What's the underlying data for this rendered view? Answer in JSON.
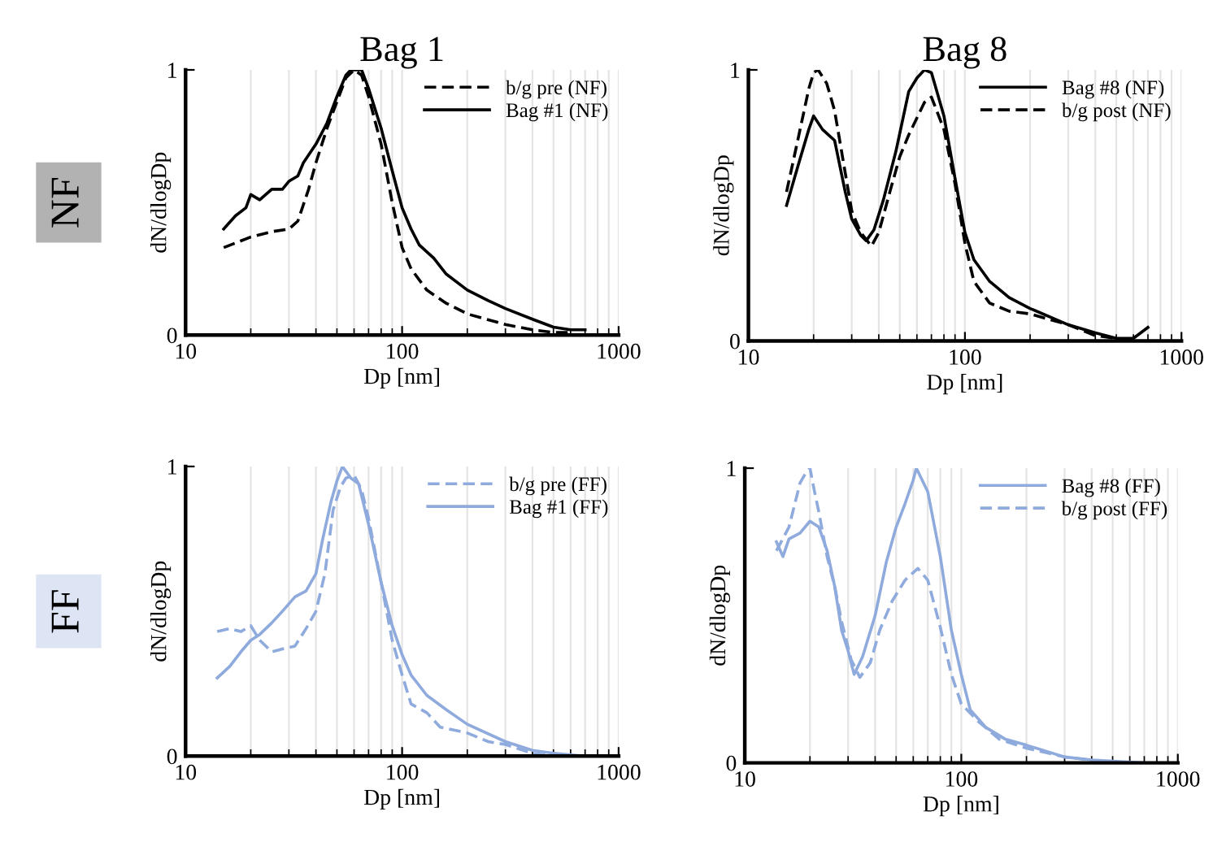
{
  "chart_data": [
    {
      "type": "line",
      "title": "Bag 1",
      "xlabel": "Dp [nm]",
      "ylabel": "dN/dlogDp",
      "annotations": [
        "NF"
      ],
      "log": "x",
      "xlim": [
        10,
        1000
      ],
      "xticks": [
        10,
        100,
        1000
      ],
      "ylim": [
        0,
        1
      ],
      "yticks": [
        0,
        1
      ],
      "grid": "x",
      "legend": "top right",
      "series": [
        {
          "name": "b/g pre (NF)",
          "color": "#000000",
          "line_style": "dashed",
          "x": [
            15,
            20,
            25,
            30,
            33,
            37,
            40,
            45,
            50,
            55,
            60,
            65,
            70,
            80,
            90,
            100,
            110,
            130,
            160,
            200,
            300,
            400,
            500,
            600
          ],
          "values": [
            0.33,
            0.37,
            0.39,
            0.4,
            0.43,
            0.55,
            0.65,
            0.78,
            0.88,
            0.97,
            1.0,
            0.98,
            0.9,
            0.72,
            0.5,
            0.33,
            0.25,
            0.17,
            0.12,
            0.08,
            0.04,
            0.02,
            0.01,
            0.01
          ]
        },
        {
          "name": "Bag #1 (NF)",
          "color": "#000000",
          "line_style": "solid",
          "x": [
            15,
            17,
            19,
            20,
            22,
            25,
            28,
            30,
            33,
            35,
            40,
            45,
            50,
            55,
            58,
            65,
            70,
            80,
            90,
            100,
            110,
            120,
            140,
            160,
            200,
            250,
            300,
            400,
            500,
            600,
            700
          ],
          "values": [
            0.4,
            0.45,
            0.48,
            0.53,
            0.51,
            0.55,
            0.55,
            0.58,
            0.6,
            0.65,
            0.72,
            0.8,
            0.9,
            0.98,
            1.0,
            1.0,
            0.93,
            0.78,
            0.62,
            0.48,
            0.4,
            0.34,
            0.29,
            0.23,
            0.17,
            0.13,
            0.1,
            0.06,
            0.03,
            0.02,
            0.02
          ]
        }
      ]
    },
    {
      "type": "line",
      "title": "Bag 8",
      "xlabel": "Dp [nm]",
      "ylabel": "dN/dlogDp",
      "log": "x",
      "xlim": [
        10,
        1000
      ],
      "xticks": [
        10,
        100,
        1000
      ],
      "ylim": [
        0,
        1
      ],
      "yticks": [
        0,
        1
      ],
      "grid": "x",
      "legend": "top right",
      "series": [
        {
          "name": "Bag #8 (NF)",
          "color": "#000000",
          "line_style": "solid",
          "x": [
            15,
            17,
            19,
            20,
            22,
            25,
            28,
            30,
            33,
            35,
            38,
            42,
            48,
            55,
            60,
            65,
            70,
            80,
            90,
            100,
            110,
            130,
            160,
            200,
            300,
            400,
            500,
            600,
            700
          ],
          "values": [
            0.5,
            0.65,
            0.78,
            0.83,
            0.78,
            0.74,
            0.55,
            0.45,
            0.39,
            0.37,
            0.41,
            0.52,
            0.7,
            0.92,
            0.97,
            1.0,
            0.99,
            0.83,
            0.6,
            0.4,
            0.3,
            0.22,
            0.16,
            0.12,
            0.06,
            0.03,
            0.01,
            0.01,
            0.05
          ]
        },
        {
          "name": "b/g post (NF)",
          "color": "#000000",
          "line_style": "dashed",
          "x": [
            15,
            17,
            19,
            20,
            21,
            23,
            25,
            28,
            30,
            33,
            37,
            40,
            45,
            50,
            55,
            65,
            70,
            80,
            90,
            100,
            110,
            130,
            160,
            200,
            300,
            400,
            500,
            600
          ],
          "values": [
            0.55,
            0.75,
            0.93,
            0.99,
            1.0,
            0.95,
            0.85,
            0.62,
            0.48,
            0.4,
            0.35,
            0.4,
            0.55,
            0.68,
            0.76,
            0.88,
            0.9,
            0.78,
            0.58,
            0.36,
            0.22,
            0.14,
            0.11,
            0.1,
            0.06,
            0.02,
            0.01,
            0.0
          ]
        }
      ]
    },
    {
      "type": "line",
      "xlabel": "Dp [nm]",
      "ylabel": "dN/dlogDp",
      "annotations": [
        "FF"
      ],
      "log": "x",
      "xlim": [
        10,
        1000
      ],
      "xticks": [
        10,
        100,
        1000
      ],
      "ylim": [
        0,
        1
      ],
      "yticks": [
        0,
        1
      ],
      "grid": "x",
      "legend": "top right",
      "series": [
        {
          "name": "b/g pre (FF)",
          "color": "#8faadc",
          "line_style": "dashed",
          "x": [
            14,
            16,
            18,
            20,
            22,
            25,
            28,
            32,
            36,
            40,
            44,
            48,
            52,
            55,
            60,
            65,
            70,
            80,
            90,
            100,
            110,
            130,
            150,
            200,
            250,
            300,
            400,
            500
          ],
          "values": [
            0.43,
            0.44,
            0.43,
            0.45,
            0.4,
            0.36,
            0.37,
            0.38,
            0.44,
            0.5,
            0.63,
            0.85,
            0.93,
            0.96,
            0.97,
            0.92,
            0.82,
            0.6,
            0.4,
            0.28,
            0.18,
            0.15,
            0.1,
            0.08,
            0.05,
            0.04,
            0.01,
            0.0
          ]
        },
        {
          "name": "Bag #1 (FF)",
          "color": "#8faadc",
          "line_style": "solid",
          "x": [
            14,
            16,
            18,
            20,
            22,
            25,
            28,
            32,
            36,
            40,
            43,
            47,
            50,
            53,
            58,
            63,
            70,
            80,
            90,
            100,
            110,
            130,
            160,
            200,
            300,
            400,
            500,
            700
          ],
          "values": [
            0.27,
            0.31,
            0.36,
            0.4,
            0.42,
            0.46,
            0.5,
            0.55,
            0.57,
            0.63,
            0.75,
            0.88,
            0.95,
            1.0,
            0.96,
            0.94,
            0.8,
            0.6,
            0.45,
            0.35,
            0.28,
            0.21,
            0.16,
            0.11,
            0.05,
            0.02,
            0.01,
            0.0
          ]
        }
      ]
    },
    {
      "type": "line",
      "xlabel": "Dp [nm]",
      "ylabel": "dN/dlogDp",
      "log": "x",
      "xlim": [
        10,
        1000
      ],
      "xticks": [
        10,
        100,
        1000
      ],
      "ylim": [
        0,
        1
      ],
      "yticks": [
        0,
        1
      ],
      "grid": "x",
      "legend": "top right",
      "series": [
        {
          "name": "Bag #8 (FF)",
          "color": "#8faadc",
          "line_style": "solid",
          "x": [
            14,
            15,
            16,
            18,
            20,
            22,
            24,
            26,
            28,
            30,
            32,
            35,
            40,
            45,
            50,
            55,
            60,
            62,
            70,
            80,
            90,
            100,
            110,
            130,
            160,
            200,
            300,
            400,
            700
          ],
          "values": [
            0.75,
            0.7,
            0.76,
            0.78,
            0.82,
            0.8,
            0.72,
            0.6,
            0.45,
            0.38,
            0.3,
            0.36,
            0.5,
            0.68,
            0.8,
            0.88,
            0.96,
            1.0,
            0.92,
            0.7,
            0.45,
            0.3,
            0.18,
            0.12,
            0.08,
            0.06,
            0.02,
            0.01,
            0.0
          ]
        },
        {
          "name": "b/g post (FF)",
          "color": "#8faadc",
          "line_style": "dashed",
          "x": [
            14,
            16,
            18,
            19,
            20,
            21,
            22,
            24,
            26,
            28,
            31,
            34,
            38,
            42,
            48,
            55,
            63,
            70,
            80,
            90,
            100,
            120,
            150,
            200,
            300,
            500
          ],
          "values": [
            0.72,
            0.8,
            0.95,
            0.98,
            1.0,
            0.92,
            0.85,
            0.7,
            0.6,
            0.48,
            0.35,
            0.29,
            0.34,
            0.45,
            0.55,
            0.62,
            0.66,
            0.62,
            0.46,
            0.3,
            0.2,
            0.14,
            0.08,
            0.05,
            0.02,
            0.0
          ]
        }
      ]
    }
  ]
}
